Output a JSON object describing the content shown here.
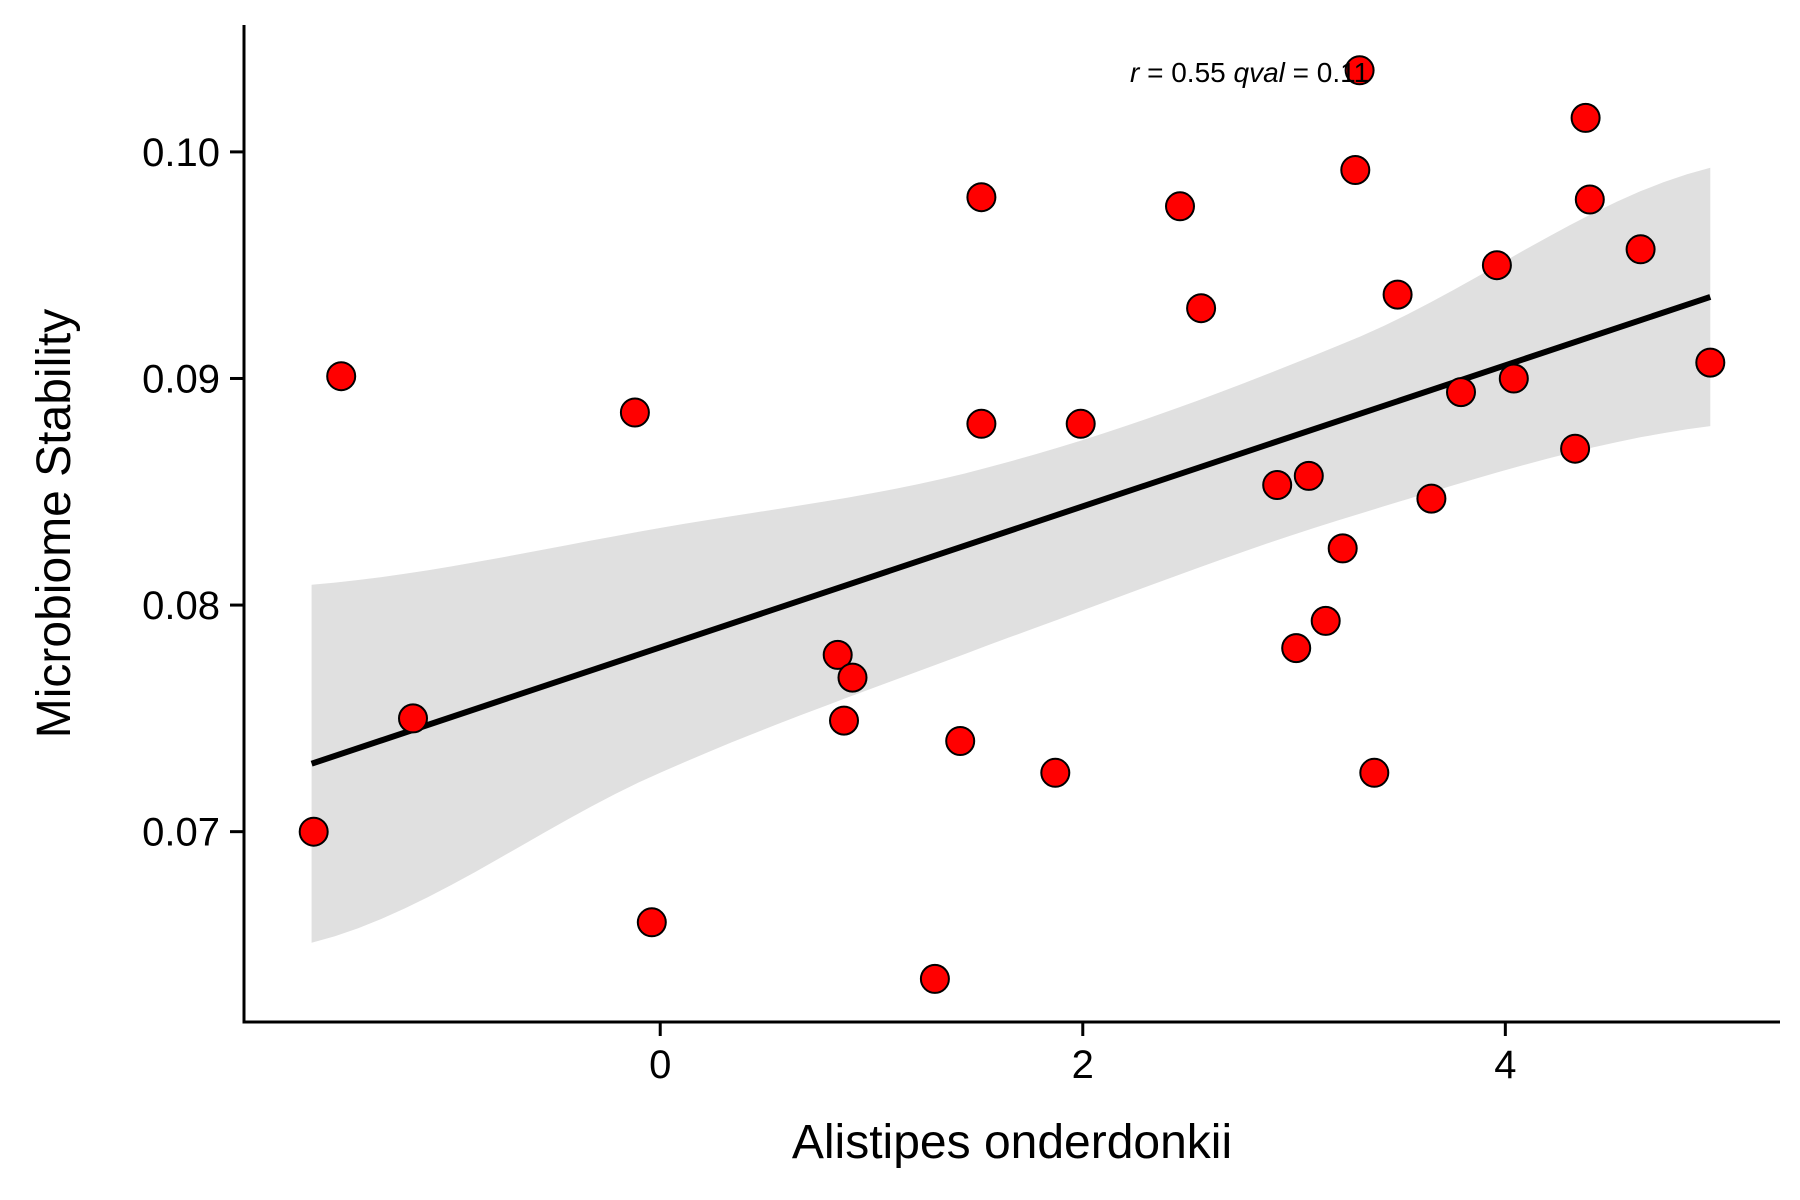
{
  "chart_data": {
    "type": "scatter",
    "xlabel": "Alistipes onderdonkii",
    "ylabel": "Microbiome Stability",
    "xlim": [
      -1.97,
      5.3
    ],
    "ylim": [
      0.0616,
      0.1056
    ],
    "x_ticks": [
      "0",
      "2",
      "4"
    ],
    "x_tick_values": [
      0,
      2,
      4
    ],
    "y_ticks": [
      "0.07",
      "0.08",
      "0.09",
      "0.10"
    ],
    "y_tick_values": [
      0.07,
      0.08,
      0.09,
      0.1
    ],
    "grid": false,
    "legend": "none",
    "annotation": {
      "r_symbol": "r",
      "r_text": " = 0.55 ",
      "q_symbol": "qval",
      "q_text": " = 0.11"
    },
    "regression": {
      "x_start": -1.65,
      "x_end": 4.97,
      "y_start": 0.073,
      "y_end": 0.0936
    },
    "confidence_band": {
      "x": [
        -1.65,
        0.0,
        1.6,
        3.3,
        4.97
      ],
      "lower": [
        0.0651,
        0.0726,
        0.0784,
        0.084,
        0.0879
      ],
      "upper": [
        0.0809,
        0.0834,
        0.0862,
        0.0918,
        0.0993
      ]
    },
    "points": [
      {
        "x": -1.64,
        "y": 0.07
      },
      {
        "x": -1.51,
        "y": 0.0901
      },
      {
        "x": -1.17,
        "y": 0.075
      },
      {
        "x": -0.12,
        "y": 0.0885
      },
      {
        "x": -0.04,
        "y": 0.066
      },
      {
        "x": 0.84,
        "y": 0.0778
      },
      {
        "x": 0.87,
        "y": 0.0749
      },
      {
        "x": 0.91,
        "y": 0.0768
      },
      {
        "x": 1.3,
        "y": 0.0635
      },
      {
        "x": 1.42,
        "y": 0.074
      },
      {
        "x": 1.52,
        "y": 0.088
      },
      {
        "x": 1.52,
        "y": 0.098
      },
      {
        "x": 1.87,
        "y": 0.0726
      },
      {
        "x": 1.99,
        "y": 0.088
      },
      {
        "x": 2.46,
        "y": 0.0976
      },
      {
        "x": 2.56,
        "y": 0.0931
      },
      {
        "x": 2.92,
        "y": 0.0853
      },
      {
        "x": 3.01,
        "y": 0.0781
      },
      {
        "x": 3.07,
        "y": 0.0857
      },
      {
        "x": 3.15,
        "y": 0.0793
      },
      {
        "x": 3.23,
        "y": 0.0825
      },
      {
        "x": 3.29,
        "y": 0.0992
      },
      {
        "x": 3.31,
        "y": 0.1036
      },
      {
        "x": 3.38,
        "y": 0.0726
      },
      {
        "x": 3.49,
        "y": 0.0937
      },
      {
        "x": 3.65,
        "y": 0.0847
      },
      {
        "x": 3.79,
        "y": 0.0894
      },
      {
        "x": 3.96,
        "y": 0.095
      },
      {
        "x": 4.04,
        "y": 0.09
      },
      {
        "x": 4.33,
        "y": 0.0869
      },
      {
        "x": 4.38,
        "y": 0.1015
      },
      {
        "x": 4.4,
        "y": 0.0979
      },
      {
        "x": 4.64,
        "y": 0.0957
      },
      {
        "x": 4.97,
        "y": 0.0907
      }
    ],
    "colors": {
      "point_fill": "#ff0000",
      "point_stroke": "#000000",
      "line": "#000000",
      "band": "#e0e0e0"
    }
  }
}
